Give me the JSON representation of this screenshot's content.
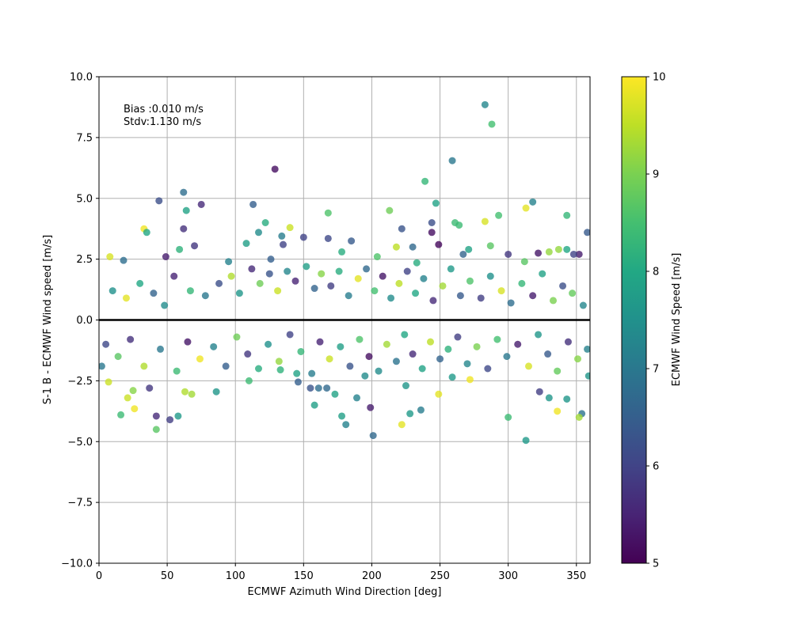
{
  "chart_data": {
    "type": "scatter",
    "title": "",
    "xlabel": "ECMWF Azimuth Wind Direction [deg]",
    "ylabel": "S-1 B - ECMWF Wind speed [m/s]",
    "xlim": [
      0,
      360
    ],
    "ylim": [
      -10,
      10
    ],
    "xticks": [
      0,
      50,
      100,
      150,
      200,
      250,
      300,
      350
    ],
    "yticks": [
      "−10.0",
      "−7.5",
      "−5.0",
      "−2.5",
      "0.0",
      "2.5",
      "5.0",
      "7.5",
      "10.0"
    ],
    "grid": true,
    "annotations": [
      "Bias :0.010 m/s",
      "Stdv:1.130 m/s"
    ],
    "reference_line_y": 0,
    "colorbar": {
      "label": "ECMWF Wind Speed [m/s]",
      "range": [
        5,
        10
      ],
      "ticks": [
        5,
        6,
        7,
        8,
        9,
        10
      ],
      "colormap": "viridis"
    },
    "series": [
      {
        "points": [
          [
            283,
            8.85,
            7.3
          ],
          [
            288,
            8.05,
            8.5
          ],
          [
            129,
            6.2,
            5.2
          ],
          [
            259,
            6.55,
            7.0
          ],
          [
            62,
            5.25,
            6.8
          ],
          [
            239,
            5.7,
            8.3
          ],
          [
            44,
            4.9,
            6.2
          ],
          [
            113,
            4.75,
            6.5
          ],
          [
            75,
            4.75,
            5.6
          ],
          [
            64,
            4.5,
            7.9
          ],
          [
            247,
            4.8,
            7.9
          ],
          [
            318,
            4.85,
            7.2
          ],
          [
            213,
            4.5,
            8.9
          ],
          [
            313,
            4.6,
            9.8
          ],
          [
            293,
            4.3,
            8.5
          ],
          [
            343,
            4.3,
            8.3
          ],
          [
            168,
            4.4,
            8.6
          ],
          [
            283,
            4.05,
            9.7
          ],
          [
            261,
            4.0,
            8.4
          ],
          [
            244,
            4.0,
            6.2
          ],
          [
            122,
            4.0,
            8.1
          ],
          [
            140,
            3.8,
            9.6
          ],
          [
            33,
            3.75,
            9.9
          ],
          [
            62,
            3.75,
            5.7
          ],
          [
            222,
            3.75,
            6.3
          ],
          [
            358,
            3.6,
            6.4
          ],
          [
            35,
            3.6,
            8.0
          ],
          [
            117,
            3.6,
            7.4
          ],
          [
            264,
            3.9,
            8.4
          ],
          [
            244,
            3.6,
            5.2
          ],
          [
            134,
            3.45,
            7.1
          ],
          [
            150,
            3.4,
            6.0
          ],
          [
            168,
            3.35,
            6.1
          ],
          [
            185,
            3.25,
            6.4
          ],
          [
            249,
            3.1,
            5.1
          ],
          [
            108,
            3.15,
            7.8
          ],
          [
            70,
            3.05,
            5.8
          ],
          [
            230,
            3.0,
            6.7
          ],
          [
            287,
            3.05,
            8.7
          ],
          [
            337,
            2.9,
            9.2
          ],
          [
            218,
            3.0,
            9.5
          ],
          [
            59,
            2.9,
            8.2
          ],
          [
            271,
            2.9,
            7.9
          ],
          [
            8,
            2.6,
            9.7
          ],
          [
            49,
            2.6,
            5.4
          ],
          [
            267,
            2.7,
            6.6
          ],
          [
            300,
            2.7,
            5.8
          ],
          [
            330,
            2.8,
            9.2
          ],
          [
            18,
            2.45,
            6.8
          ],
          [
            312,
            2.4,
            8.7
          ],
          [
            343,
            2.9,
            8.0
          ],
          [
            352,
            2.7,
            5.4
          ],
          [
            322,
            2.75,
            5.3
          ],
          [
            348,
            2.7,
            6.0
          ],
          [
            95,
            2.4,
            7.2
          ],
          [
            126,
            2.5,
            6.5
          ],
          [
            135,
            3.1,
            6.0
          ],
          [
            178,
            2.8,
            8.1
          ],
          [
            204,
            2.6,
            8.6
          ],
          [
            233,
            2.35,
            8.1
          ],
          [
            21,
            -3.2,
            9.6
          ],
          [
            26,
            -3.65,
            9.9
          ],
          [
            16,
            -3.9,
            8.4
          ],
          [
            42,
            -3.95,
            5.6
          ],
          [
            42,
            -4.5,
            8.7
          ],
          [
            52,
            -4.1,
            5.9
          ],
          [
            58,
            -3.95,
            7.7
          ],
          [
            86,
            -2.95,
            7.6
          ],
          [
            110,
            -2.5,
            8.4
          ],
          [
            146,
            -2.55,
            6.5
          ],
          [
            158,
            -3.5,
            7.8
          ],
          [
            178,
            -3.95,
            7.8
          ],
          [
            181,
            -4.3,
            7.2
          ],
          [
            199,
            -3.6,
            5.4
          ],
          [
            201,
            -4.75,
            6.7
          ],
          [
            228,
            -3.85,
            7.7
          ],
          [
            236,
            -3.7,
            7.1
          ],
          [
            249,
            -3.05,
            9.8
          ],
          [
            272,
            -2.45,
            9.9
          ],
          [
            300,
            -4.0,
            8.4
          ],
          [
            313,
            -4.95,
            7.7
          ],
          [
            323,
            -2.95,
            5.9
          ],
          [
            330,
            -3.2,
            7.6
          ],
          [
            336,
            -3.75,
            9.9
          ],
          [
            343,
            -3.25,
            7.6
          ],
          [
            354,
            -3.85,
            6.9
          ],
          [
            352,
            -4.0,
            9.3
          ],
          [
            359,
            -2.3,
            7.6
          ],
          [
            25,
            -2.9,
            9.1
          ],
          [
            7,
            -2.55,
            9.6
          ],
          [
            63,
            -2.95,
            9.4
          ],
          [
            68,
            -3.05,
            9.3
          ],
          [
            37,
            -2.8,
            5.8
          ],
          [
            189,
            -3.2,
            7.2
          ],
          [
            173,
            -3.05,
            7.9
          ],
          [
            167,
            -2.8,
            6.7
          ],
          [
            161,
            -2.8,
            6.8
          ],
          [
            155,
            -2.8,
            6.3
          ],
          [
            225,
            -2.7,
            7.6
          ],
          [
            222,
            -4.3,
            9.8
          ],
          [
            259,
            -2.35,
            7.7
          ],
          [
            195,
            -2.3,
            7.4
          ],
          [
            133,
            -2.05,
            8.2
          ],
          [
            145,
            -2.2,
            7.9
          ],
          [
            10,
            1.2,
            7.5
          ],
          [
            20,
            0.9,
            9.8
          ],
          [
            30,
            1.5,
            8.0
          ],
          [
            40,
            1.1,
            6.6
          ],
          [
            48,
            0.6,
            7.4
          ],
          [
            55,
            1.8,
            5.5
          ],
          [
            67,
            1.2,
            8.3
          ],
          [
            78,
            1.0,
            7.0
          ],
          [
            88,
            1.5,
            6.2
          ],
          [
            97,
            1.8,
            9.4
          ],
          [
            103,
            1.1,
            7.6
          ],
          [
            112,
            2.1,
            5.6
          ],
          [
            118,
            1.5,
            8.9
          ],
          [
            125,
            1.9,
            6.3
          ],
          [
            131,
            1.2,
            9.6
          ],
          [
            138,
            2.0,
            7.3
          ],
          [
            144,
            1.6,
            5.5
          ],
          [
            152,
            2.2,
            7.8
          ],
          [
            158,
            1.3,
            6.6
          ],
          [
            163,
            1.9,
            9.1
          ],
          [
            170,
            1.4,
            5.9
          ],
          [
            176,
            2.0,
            8.1
          ],
          [
            183,
            1.0,
            7.1
          ],
          [
            190,
            1.7,
            9.8
          ],
          [
            196,
            2.1,
            6.7
          ],
          [
            202,
            1.2,
            8.5
          ],
          [
            208,
            1.8,
            5.3
          ],
          [
            214,
            0.9,
            7.4
          ],
          [
            220,
            1.5,
            9.5
          ],
          [
            226,
            2.0,
            6.0
          ],
          [
            232,
            1.1,
            8.0
          ],
          [
            238,
            1.7,
            7.2
          ],
          [
            245,
            0.8,
            5.6
          ],
          [
            252,
            1.4,
            9.3
          ],
          [
            258,
            2.1,
            7.7
          ],
          [
            265,
            1.0,
            6.4
          ],
          [
            272,
            1.6,
            8.6
          ],
          [
            280,
            0.9,
            5.9
          ],
          [
            287,
            1.8,
            7.5
          ],
          [
            295,
            1.2,
            9.7
          ],
          [
            302,
            0.7,
            6.8
          ],
          [
            310,
            1.5,
            8.3
          ],
          [
            318,
            1.0,
            5.4
          ],
          [
            325,
            1.9,
            7.9
          ],
          [
            333,
            0.8,
            9.0
          ],
          [
            340,
            1.4,
            6.2
          ],
          [
            347,
            1.1,
            8.8
          ],
          [
            355,
            0.6,
            7.3
          ],
          [
            5,
            -1.0,
            6.1
          ],
          [
            14,
            -1.5,
            8.7
          ],
          [
            23,
            -0.8,
            5.7
          ],
          [
            33,
            -1.9,
            9.4
          ],
          [
            45,
            -1.2,
            7.0
          ],
          [
            57,
            -2.1,
            8.4
          ],
          [
            65,
            -0.9,
            5.3
          ],
          [
            74,
            -1.6,
            9.9
          ],
          [
            84,
            -1.1,
            7.2
          ],
          [
            93,
            -1.9,
            6.5
          ],
          [
            101,
            -0.7,
            8.9
          ],
          [
            109,
            -1.4,
            5.8
          ],
          [
            117,
            -2.0,
            8.1
          ],
          [
            124,
            -1.0,
            7.5
          ],
          [
            132,
            -1.7,
            9.2
          ],
          [
            140,
            -0.6,
            6.0
          ],
          [
            148,
            -1.3,
            8.3
          ],
          [
            156,
            -2.2,
            7.1
          ],
          [
            162,
            -0.9,
            5.5
          ],
          [
            169,
            -1.6,
            9.6
          ],
          [
            177,
            -1.1,
            7.8
          ],
          [
            184,
            -1.9,
            6.3
          ],
          [
            191,
            -0.8,
            8.6
          ],
          [
            198,
            -1.5,
            5.2
          ],
          [
            205,
            -2.1,
            7.4
          ],
          [
            211,
            -1.0,
            9.3
          ],
          [
            218,
            -1.7,
            6.9
          ],
          [
            224,
            -0.6,
            8.0
          ],
          [
            230,
            -1.4,
            5.6
          ],
          [
            237,
            -2.0,
            7.9
          ],
          [
            243,
            -0.9,
            9.5
          ],
          [
            250,
            -1.6,
            6.6
          ],
          [
            256,
            -1.2,
            8.2
          ],
          [
            263,
            -0.7,
            5.9
          ],
          [
            270,
            -1.8,
            7.3
          ],
          [
            277,
            -1.1,
            9.0
          ],
          [
            285,
            -2.0,
            6.1
          ],
          [
            292,
            -0.8,
            8.5
          ],
          [
            299,
            -1.5,
            7.0
          ],
          [
            307,
            -1.0,
            5.4
          ],
          [
            315,
            -1.9,
            9.7
          ],
          [
            322,
            -0.6,
            7.6
          ],
          [
            329,
            -1.4,
            6.4
          ],
          [
            336,
            -2.1,
            8.8
          ],
          [
            344,
            -0.9,
            5.7
          ],
          [
            351,
            -1.6,
            9.1
          ],
          [
            358,
            -1.2,
            7.2
          ],
          [
            2,
            -1.9,
            7.0
          ]
        ]
      }
    ]
  }
}
